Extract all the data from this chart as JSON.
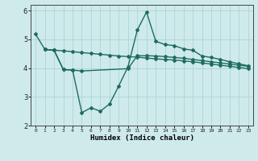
{
  "line1_x": [
    0,
    1,
    2,
    3,
    4,
    5,
    6,
    7,
    8,
    9,
    10,
    11,
    12,
    13,
    14,
    15,
    16,
    17,
    18,
    19,
    20,
    21,
    22,
    23
  ],
  "line1_y": [
    5.18,
    4.65,
    4.62,
    4.6,
    4.57,
    4.54,
    4.51,
    4.48,
    4.45,
    4.42,
    4.4,
    4.38,
    4.35,
    4.32,
    4.3,
    4.28,
    4.25,
    4.22,
    4.18,
    4.14,
    4.1,
    4.06,
    4.02,
    3.98
  ],
  "line2_x": [
    1,
    2,
    3,
    4,
    5,
    10,
    11,
    12,
    13,
    14,
    15,
    16,
    17,
    18,
    19,
    20,
    21,
    22,
    23
  ],
  "line2_y": [
    4.65,
    4.62,
    3.95,
    3.93,
    3.9,
    3.98,
    4.43,
    4.43,
    4.42,
    4.4,
    4.37,
    4.34,
    4.3,
    4.26,
    4.22,
    4.18,
    4.14,
    4.1,
    4.06
  ],
  "line3_x": [
    1,
    2,
    3,
    4,
    5,
    6,
    7,
    8,
    9,
    10,
    11,
    12,
    13,
    14,
    15,
    16,
    17,
    18,
    19,
    20,
    21,
    22,
    23
  ],
  "line3_y": [
    4.65,
    4.62,
    3.95,
    3.93,
    2.45,
    2.62,
    2.5,
    2.75,
    3.38,
    4.05,
    5.32,
    5.95,
    4.93,
    4.82,
    4.78,
    4.67,
    4.62,
    4.42,
    4.37,
    4.3,
    4.22,
    4.15,
    4.08
  ],
  "line_color": "#1e6b60",
  "bg_color": "#ceeaea",
  "grid_color": "#aed4d4",
  "xlabel": "Humidex (Indice chaleur)",
  "ylim": [
    2.0,
    6.2
  ],
  "xlim": [
    -0.5,
    23.5
  ],
  "yticks": [
    2,
    3,
    4,
    5,
    6
  ],
  "xticks": [
    0,
    1,
    2,
    3,
    4,
    5,
    6,
    7,
    8,
    9,
    10,
    11,
    12,
    13,
    14,
    15,
    16,
    17,
    18,
    19,
    20,
    21,
    22,
    23
  ],
  "xtick_labels": [
    "0",
    "1",
    "2",
    "3",
    "4",
    "5",
    "6",
    "7",
    "8",
    "9",
    "10",
    "11",
    "12",
    "13",
    "14",
    "15",
    "16",
    "17",
    "18",
    "19",
    "20",
    "21",
    "22",
    "23"
  ],
  "marker": "D",
  "marker_size": 2.0,
  "linewidth": 1.0
}
